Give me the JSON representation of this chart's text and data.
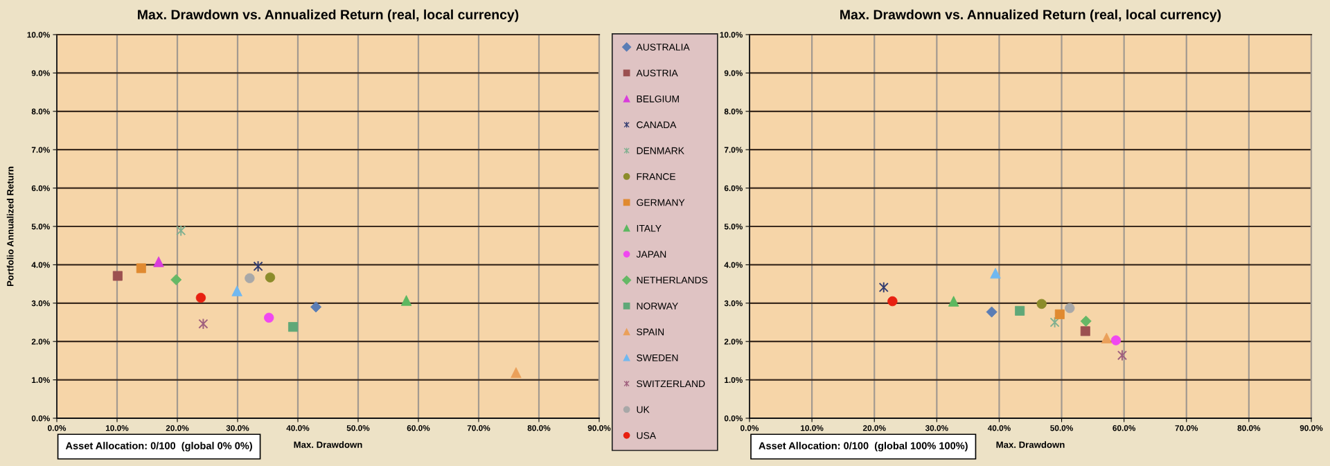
{
  "chart_data": [
    {
      "type": "scatter",
      "title": "Max. Drawdown vs. Annualized Return (real, local currency)",
      "xlabel": "Max. Drawdown",
      "ylabel": "Portfolio Annualized Return",
      "xlim": [
        0,
        90
      ],
      "xticks": [
        {
          "value": 0,
          "label": "0.0%"
        },
        {
          "value": 10,
          "label": "10.0%"
        },
        {
          "value": 20,
          "label": "20.0%"
        },
        {
          "value": 30,
          "label": "30.0%"
        },
        {
          "value": 40,
          "label": "40.0%"
        },
        {
          "value": 50,
          "label": "50.0%"
        },
        {
          "value": 60,
          "label": "60.0%"
        },
        {
          "value": 70,
          "label": "70.0%"
        },
        {
          "value": 80,
          "label": "80.0%"
        },
        {
          "value": 90,
          "label": "90.0%"
        }
      ],
      "ylim": [
        0,
        10
      ],
      "yticks": [
        {
          "value": 0,
          "label": "0.0%"
        },
        {
          "value": 1,
          "label": "1.0%"
        },
        {
          "value": 2,
          "label": "2.0%"
        },
        {
          "value": 3,
          "label": "3.0%"
        },
        {
          "value": 4,
          "label": "4.0%"
        },
        {
          "value": 5,
          "label": "5.0%"
        },
        {
          "value": 6,
          "label": "6.0%"
        },
        {
          "value": 7,
          "label": "7.0%"
        },
        {
          "value": 8,
          "label": "8.0%"
        },
        {
          "value": 9,
          "label": "9.0%"
        },
        {
          "value": 10,
          "label": "10.0%"
        }
      ],
      "grid": true,
      "legend": "right",
      "annotations": [
        "Asset Allocation: 0/100  (global 0% 0%)"
      ],
      "series": [
        {
          "name": "AUSTRALIA",
          "color": "#5a7db5",
          "marker": "diamond",
          "x": [
            43.0
          ],
          "values": [
            2.9
          ]
        },
        {
          "name": "AUSTRIA",
          "color": "#9c5050",
          "marker": "square",
          "x": [
            10.1
          ],
          "values": [
            3.71
          ]
        },
        {
          "name": "BELGIUM",
          "color": "#d93cdc",
          "marker": "triangle",
          "x": [
            16.9
          ],
          "values": [
            4.08
          ]
        },
        {
          "name": "CANADA",
          "color": "#333d70",
          "marker": "cross",
          "x": [
            33.4
          ],
          "values": [
            3.96
          ]
        },
        {
          "name": "DENMARK",
          "color": "#80b090",
          "marker": "cross",
          "x": [
            20.6
          ],
          "values": [
            4.89
          ]
        },
        {
          "name": "FRANCE",
          "color": "#8c8c2a",
          "marker": "circle",
          "x": [
            35.4
          ],
          "values": [
            3.67
          ]
        },
        {
          "name": "GERMANY",
          "color": "#e08a30",
          "marker": "square",
          "x": [
            14.0
          ],
          "values": [
            3.91
          ]
        },
        {
          "name": "ITALY",
          "color": "#5cb860",
          "marker": "triangle",
          "x": [
            58.0
          ],
          "values": [
            3.07
          ]
        },
        {
          "name": "JAPAN",
          "color": "#f048f0",
          "marker": "circle",
          "x": [
            35.2
          ],
          "values": [
            2.62
          ]
        },
        {
          "name": "NETHERLANDS",
          "color": "#66b866",
          "marker": "diamond",
          "x": [
            19.8
          ],
          "values": [
            3.61
          ]
        },
        {
          "name": "NORWAY",
          "color": "#60a878",
          "marker": "square",
          "x": [
            39.2
          ],
          "values": [
            2.38
          ]
        },
        {
          "name": "SPAIN",
          "color": "#eaa05a",
          "marker": "triangle",
          "x": [
            76.2
          ],
          "values": [
            1.19
          ]
        },
        {
          "name": "SWEDEN",
          "color": "#70b8f0",
          "marker": "triangle",
          "x": [
            29.9
          ],
          "values": [
            3.32
          ]
        },
        {
          "name": "SWITZERLAND",
          "color": "#a0607e",
          "marker": "cross",
          "x": [
            24.3
          ],
          "values": [
            2.46
          ]
        },
        {
          "name": "UK",
          "color": "#a8a8a8",
          "marker": "circle",
          "x": [
            32.0
          ],
          "values": [
            3.65
          ]
        },
        {
          "name": "USA",
          "color": "#e82010",
          "marker": "circle",
          "x": [
            23.9
          ],
          "values": [
            3.14
          ]
        }
      ]
    },
    {
      "type": "scatter",
      "title": "Max. Drawdown vs. Annualized Return (real, local currency)",
      "xlabel": "Max. Drawdown",
      "xlim": [
        0,
        90
      ],
      "xticks": [
        {
          "value": 0,
          "label": "0.0%"
        },
        {
          "value": 10,
          "label": "10.0%"
        },
        {
          "value": 20,
          "label": "20.0%"
        },
        {
          "value": 30,
          "label": "30.0%"
        },
        {
          "value": 40,
          "label": "40.0%"
        },
        {
          "value": 50,
          "label": "50.0%"
        },
        {
          "value": 60,
          "label": "60.0%"
        },
        {
          "value": 70,
          "label": "70.0%"
        },
        {
          "value": 80,
          "label": "80.0%"
        },
        {
          "value": 90,
          "label": "90.0%"
        }
      ],
      "ylim": [
        0,
        10
      ],
      "yticks": [
        {
          "value": 0,
          "label": "0.0%"
        },
        {
          "value": 1,
          "label": "1.0%"
        },
        {
          "value": 2,
          "label": "2.0%"
        },
        {
          "value": 3,
          "label": "3.0%"
        },
        {
          "value": 4,
          "label": "4.0%"
        },
        {
          "value": 5,
          "label": "5.0%"
        },
        {
          "value": 6,
          "label": "6.0%"
        },
        {
          "value": 7,
          "label": "7.0%"
        },
        {
          "value": 8,
          "label": "8.0%"
        },
        {
          "value": 9,
          "label": "9.0%"
        },
        {
          "value": 10,
          "label": "10.0%"
        }
      ],
      "grid": true,
      "annotations": [
        "Asset Allocation: 0/100  (global 100% 100%)"
      ],
      "series": [
        {
          "color": "#5a7db5",
          "marker": "diamond",
          "x": [
            38.8
          ],
          "values": [
            2.77
          ]
        },
        {
          "color": "#9c5050",
          "marker": "square",
          "x": [
            53.8
          ],
          "values": [
            2.27
          ]
        },
        {
          "color": "#333d70",
          "marker": "cross",
          "x": [
            21.5
          ],
          "values": [
            3.41
          ]
        },
        {
          "color": "#80b090",
          "marker": "cross",
          "x": [
            48.9
          ],
          "values": [
            2.5
          ]
        },
        {
          "color": "#8c8c2a",
          "marker": "circle",
          "x": [
            46.8
          ],
          "values": [
            2.98
          ]
        },
        {
          "color": "#e08a30",
          "marker": "square",
          "x": [
            49.7
          ],
          "values": [
            2.71
          ]
        },
        {
          "color": "#5cb860",
          "marker": "triangle",
          "x": [
            32.7
          ],
          "values": [
            3.05
          ]
        },
        {
          "color": "#f048f0",
          "marker": "circle",
          "x": [
            58.7
          ],
          "values": [
            2.03
          ]
        },
        {
          "color": "#66b866",
          "marker": "diamond",
          "x": [
            53.9
          ],
          "values": [
            2.53
          ]
        },
        {
          "color": "#60a878",
          "marker": "square",
          "x": [
            43.3
          ],
          "values": [
            2.8
          ]
        },
        {
          "color": "#eaa05a",
          "marker": "triangle",
          "x": [
            57.2
          ],
          "values": [
            2.09
          ]
        },
        {
          "color": "#70b8f0",
          "marker": "triangle",
          "x": [
            39.4
          ],
          "values": [
            3.78
          ]
        },
        {
          "color": "#a0607e",
          "marker": "cross",
          "x": [
            59.7
          ],
          "values": [
            1.64
          ]
        },
        {
          "color": "#a8a8a8",
          "marker": "circle",
          "x": [
            51.3
          ],
          "values": [
            2.87
          ]
        },
        {
          "color": "#e82010",
          "marker": "circle",
          "x": [
            22.9
          ],
          "values": [
            3.05
          ]
        }
      ]
    }
  ]
}
